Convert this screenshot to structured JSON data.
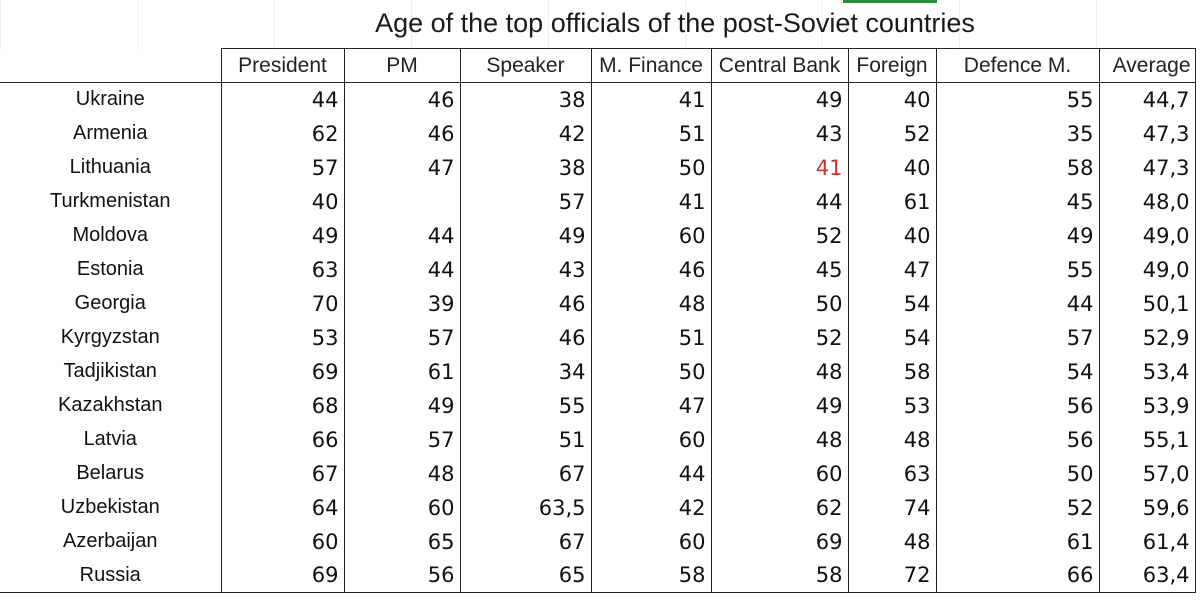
{
  "chart_data": {
    "type": "table",
    "title": "Age of the top officials of the post-Soviet countries",
    "columns": [
      "President",
      "PM",
      "Speaker",
      "M. Finance",
      "Central Bank",
      "Foreign",
      "Defence M.",
      "Average"
    ],
    "rows": [
      {
        "country": "Ukraine",
        "values": [
          "44",
          "46",
          "38",
          "41",
          "49",
          "40",
          "55",
          "44,7"
        ]
      },
      {
        "country": "Armenia",
        "values": [
          "62",
          "46",
          "42",
          "51",
          "43",
          "52",
          "35",
          "47,3"
        ]
      },
      {
        "country": "Lithuania",
        "values": [
          "57",
          "47",
          "38",
          "50",
          "41",
          "40",
          "58",
          "47,3"
        ]
      },
      {
        "country": "Turkmenistan",
        "values": [
          "40",
          "",
          "57",
          "41",
          "44",
          "61",
          "45",
          "48,0"
        ]
      },
      {
        "country": "Moldova",
        "values": [
          "49",
          "44",
          "49",
          "60",
          "52",
          "40",
          "49",
          "49,0"
        ]
      },
      {
        "country": "Estonia",
        "values": [
          "63",
          "44",
          "43",
          "46",
          "45",
          "47",
          "55",
          "49,0"
        ]
      },
      {
        "country": "Georgia",
        "values": [
          "70",
          "39",
          "46",
          "48",
          "50",
          "54",
          "44",
          "50,1"
        ]
      },
      {
        "country": "Kyrgyzstan",
        "values": [
          "53",
          "57",
          "46",
          "51",
          "52",
          "54",
          "57",
          "52,9"
        ]
      },
      {
        "country": "Tadjikistan",
        "values": [
          "69",
          "61",
          "34",
          "50",
          "48",
          "58",
          "54",
          "53,4"
        ]
      },
      {
        "country": "Kazakhstan",
        "values": [
          "68",
          "49",
          "55",
          "47",
          "49",
          "53",
          "56",
          "53,9"
        ]
      },
      {
        "country": "Latvia",
        "values": [
          "66",
          "57",
          "51",
          "60",
          "48",
          "48",
          "56",
          "55,1"
        ]
      },
      {
        "country": "Belarus",
        "values": [
          "67",
          "48",
          "67",
          "44",
          "60",
          "63",
          "50",
          "57,0"
        ]
      },
      {
        "country": "Uzbekistan",
        "values": [
          "64",
          "60",
          "63,5",
          "42",
          "62",
          "74",
          "52",
          "59,6"
        ]
      },
      {
        "country": "Azerbaijan",
        "values": [
          "60",
          "65",
          "67",
          "60",
          "69",
          "48",
          "61",
          "61,4"
        ]
      },
      {
        "country": "Russia",
        "values": [
          "69",
          "56",
          "65",
          "58",
          "58",
          "72",
          "66",
          "63,4"
        ]
      }
    ],
    "highlight": {
      "row": 2,
      "col": 4,
      "color": "#d0312d"
    }
  }
}
